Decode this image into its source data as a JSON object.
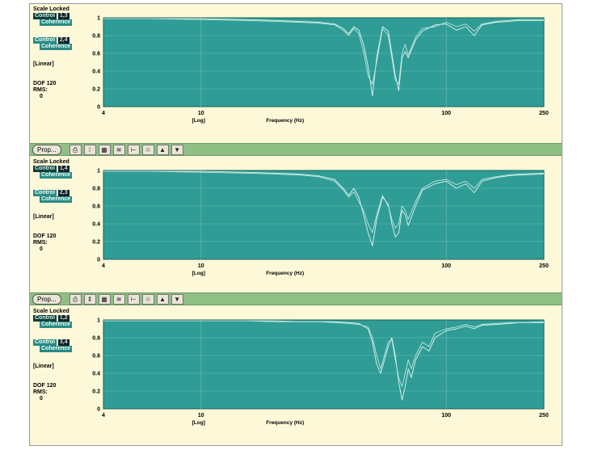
{
  "toolbar": {
    "prop_label": "Prop..."
  },
  "panels": [
    {
      "scale_label": "Scale Locked",
      "trace1": {
        "name": "Control",
        "chan": "1,3",
        "type": "Coherence"
      },
      "trace2": {
        "name": "Control",
        "chan": "2,4",
        "type": "Coherence"
      },
      "amp_label": "[Linear]",
      "dof_label": "DOF 120",
      "rms_label": "RMS:",
      "rms_value": "0",
      "axis_scale_label": "[Log]",
      "xlabel": "Frequency (Hz)"
    },
    {
      "scale_label": "Scale Locked",
      "trace1": {
        "name": "Control",
        "chan": "1,4",
        "type": "Coherence"
      },
      "trace2": {
        "name": "Control",
        "chan": "2,3",
        "type": "Coherence"
      },
      "amp_label": "[Linear]",
      "dof_label": "DOF 120",
      "rms_label": "RMS:",
      "rms_value": "0",
      "axis_scale_label": "[Log]",
      "xlabel": "Frequency (Hz)"
    },
    {
      "scale_label": "Scale Locked",
      "trace1": {
        "name": "Control",
        "chan": "1,2",
        "type": "Coherence"
      },
      "trace2": {
        "name": "Control",
        "chan": "3,4",
        "type": "Coherence"
      },
      "amp_label": "[Linear]",
      "dof_label": "DOF 120",
      "rms_label": "RMS:",
      "rms_value": "0",
      "axis_scale_label": "[Log]",
      "xlabel": "Frequency (Hz)"
    }
  ],
  "colors": {
    "plot_bg": "#2f9c96",
    "trace": "#dff5ef",
    "grid": "#6fbab4",
    "panel_bg": "#fdf8d8",
    "toolbar_bg": "#8fbf85"
  },
  "chart_data": [
    {
      "type": "line",
      "xscale": "log",
      "xlim": [
        4,
        250
      ],
      "ylim": [
        0,
        1
      ],
      "xticks": [
        "4",
        "10",
        "100",
        "250"
      ],
      "yticks": [
        "0",
        "0.2",
        "0.4",
        "0.6",
        "0.8",
        "1"
      ],
      "xlabel": "Frequency (Hz)",
      "grid": true,
      "series": [
        {
          "name": "Control 1,3 Coherence",
          "x": [
            4,
            6,
            10,
            15,
            20,
            25,
            30,
            35,
            38,
            40,
            42,
            44,
            46,
            48,
            50,
            52,
            55,
            58,
            60,
            62,
            64,
            66,
            68,
            70,
            75,
            80,
            90,
            100,
            110,
            120,
            130,
            140,
            160,
            180,
            200,
            250
          ],
          "y": [
            0.99,
            0.99,
            0.99,
            0.98,
            0.97,
            0.96,
            0.95,
            0.93,
            0.88,
            0.82,
            0.9,
            0.86,
            0.7,
            0.45,
            0.12,
            0.55,
            0.9,
            0.85,
            0.6,
            0.35,
            0.18,
            0.55,
            0.62,
            0.55,
            0.75,
            0.85,
            0.92,
            0.93,
            0.86,
            0.9,
            0.8,
            0.92,
            0.95,
            0.96,
            0.97,
            0.97
          ]
        },
        {
          "name": "Control 2,4 Coherence",
          "x": [
            4,
            6,
            10,
            15,
            20,
            25,
            30,
            35,
            38,
            40,
            42,
            44,
            46,
            48,
            50,
            52,
            55,
            58,
            60,
            62,
            64,
            66,
            68,
            70,
            75,
            80,
            90,
            100,
            110,
            120,
            130,
            140,
            160,
            180,
            200,
            250
          ],
          "y": [
            0.99,
            0.99,
            0.98,
            0.97,
            0.96,
            0.95,
            0.94,
            0.92,
            0.86,
            0.8,
            0.88,
            0.82,
            0.62,
            0.35,
            0.25,
            0.5,
            0.88,
            0.8,
            0.55,
            0.3,
            0.25,
            0.6,
            0.7,
            0.58,
            0.78,
            0.88,
            0.9,
            0.95,
            0.9,
            0.93,
            0.85,
            0.93,
            0.96,
            0.97,
            0.98,
            0.98
          ]
        }
      ]
    },
    {
      "type": "line",
      "xscale": "log",
      "xlim": [
        4,
        250
      ],
      "ylim": [
        0,
        1
      ],
      "xticks": [
        "4",
        "10",
        "100",
        "250"
      ],
      "yticks": [
        "0",
        "0.2",
        "0.4",
        "0.6",
        "0.8",
        "1"
      ],
      "xlabel": "Frequency (Hz)",
      "grid": true,
      "series": [
        {
          "name": "Control 1,4 Coherence",
          "x": [
            4,
            6,
            10,
            15,
            20,
            25,
            30,
            35,
            38,
            40,
            42,
            44,
            46,
            48,
            50,
            52,
            55,
            58,
            60,
            62,
            64,
            66,
            68,
            70,
            75,
            80,
            90,
            100,
            110,
            120,
            130,
            140,
            160,
            180,
            200,
            250
          ],
          "y": [
            0.99,
            0.99,
            0.99,
            0.98,
            0.97,
            0.96,
            0.94,
            0.9,
            0.8,
            0.72,
            0.8,
            0.7,
            0.5,
            0.3,
            0.15,
            0.45,
            0.7,
            0.62,
            0.4,
            0.25,
            0.3,
            0.55,
            0.5,
            0.38,
            0.6,
            0.78,
            0.85,
            0.88,
            0.8,
            0.85,
            0.75,
            0.88,
            0.92,
            0.94,
            0.95,
            0.96
          ]
        },
        {
          "name": "Control 2,3 Coherence",
          "x": [
            4,
            6,
            10,
            15,
            20,
            25,
            30,
            35,
            38,
            40,
            42,
            44,
            46,
            48,
            50,
            52,
            55,
            58,
            60,
            62,
            64,
            66,
            68,
            70,
            75,
            80,
            90,
            100,
            110,
            120,
            130,
            140,
            160,
            180,
            200,
            250
          ],
          "y": [
            0.99,
            0.99,
            0.98,
            0.97,
            0.96,
            0.95,
            0.93,
            0.88,
            0.78,
            0.7,
            0.76,
            0.65,
            0.55,
            0.4,
            0.3,
            0.5,
            0.72,
            0.6,
            0.45,
            0.35,
            0.4,
            0.6,
            0.55,
            0.45,
            0.65,
            0.8,
            0.88,
            0.9,
            0.84,
            0.88,
            0.8,
            0.9,
            0.93,
            0.95,
            0.96,
            0.97
          ]
        }
      ]
    },
    {
      "type": "line",
      "xscale": "log",
      "xlim": [
        4,
        250
      ],
      "ylim": [
        0,
        1
      ],
      "xticks": [
        "4",
        "10",
        "100",
        "250"
      ],
      "yticks": [
        "0",
        "0.2",
        "0.4",
        "0.6",
        "0.8",
        "1"
      ],
      "xlabel": "Frequency (Hz)",
      "grid": true,
      "series": [
        {
          "name": "Control 1,2 Coherence",
          "x": [
            4,
            6,
            10,
            15,
            20,
            25,
            30,
            35,
            40,
            44,
            48,
            50,
            52,
            54,
            56,
            58,
            60,
            62,
            64,
            66,
            68,
            70,
            72,
            75,
            80,
            85,
            90,
            100,
            110,
            120,
            130,
            140,
            160,
            180,
            200,
            250
          ],
          "y": [
            0.99,
            0.99,
            0.99,
            0.99,
            0.99,
            0.98,
            0.98,
            0.98,
            0.97,
            0.96,
            0.9,
            0.75,
            0.5,
            0.4,
            0.55,
            0.7,
            0.8,
            0.6,
            0.3,
            0.1,
            0.25,
            0.45,
            0.35,
            0.55,
            0.7,
            0.65,
            0.8,
            0.88,
            0.9,
            0.93,
            0.9,
            0.94,
            0.95,
            0.96,
            0.97,
            0.97
          ]
        },
        {
          "name": "Control 3,4 Coherence",
          "x": [
            4,
            6,
            10,
            15,
            20,
            25,
            30,
            35,
            40,
            44,
            48,
            50,
            52,
            54,
            56,
            58,
            60,
            62,
            64,
            66,
            68,
            70,
            72,
            75,
            80,
            85,
            90,
            100,
            110,
            120,
            130,
            140,
            160,
            180,
            200,
            250
          ],
          "y": [
            0.99,
            0.99,
            0.99,
            0.99,
            0.98,
            0.98,
            0.98,
            0.97,
            0.96,
            0.95,
            0.92,
            0.8,
            0.6,
            0.45,
            0.6,
            0.75,
            0.78,
            0.55,
            0.35,
            0.25,
            0.4,
            0.55,
            0.45,
            0.6,
            0.75,
            0.7,
            0.85,
            0.9,
            0.92,
            0.95,
            0.92,
            0.95,
            0.96,
            0.97,
            0.97,
            0.98
          ]
        }
      ]
    }
  ]
}
